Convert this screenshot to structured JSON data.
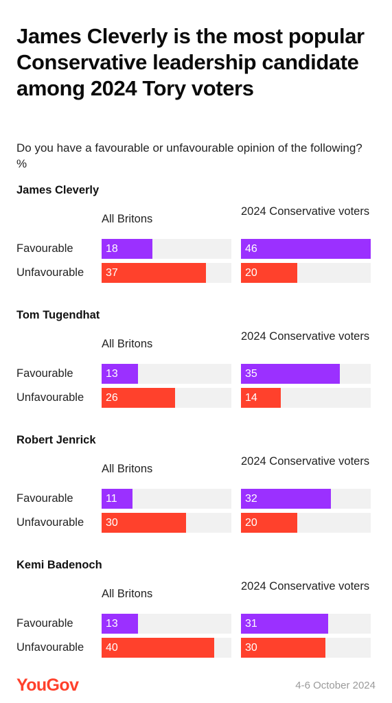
{
  "title": "James Cleverly is the most popular Conservative leadership candidate among 2024 Tory voters",
  "subtitle": "Do you have a favourable or unfavourable opinion of the following? %",
  "footer": {
    "logo": "YouGov",
    "date": "4-6 October 2024"
  },
  "colors": {
    "favourable": "#9b30ff",
    "unfavourable": "#ff412c",
    "track": "#f1f1f1",
    "brand": "#ff412c"
  },
  "chart_data": {
    "type": "bar",
    "orientation": "horizontal",
    "xlim": [
      0,
      46
    ],
    "panels": [
      "All Britons",
      "2024 Conservative voters"
    ],
    "categories": [
      "Favourable",
      "Unfavourable"
    ],
    "groups": [
      {
        "name": "James Cleverly",
        "series": [
          {
            "name": "All Britons",
            "values": [
              18,
              37
            ]
          },
          {
            "name": "2024 Conservative voters",
            "values": [
              46,
              20
            ]
          }
        ]
      },
      {
        "name": "Tom Tugendhat",
        "series": [
          {
            "name": "All Britons",
            "values": [
              13,
              26
            ]
          },
          {
            "name": "2024 Conservative voters",
            "values": [
              35,
              14
            ]
          }
        ]
      },
      {
        "name": "Robert Jenrick",
        "series": [
          {
            "name": "All Britons",
            "values": [
              11,
              30
            ]
          },
          {
            "name": "2024 Conservative voters",
            "values": [
              32,
              20
            ]
          }
        ]
      },
      {
        "name": "Kemi Badenoch",
        "series": [
          {
            "name": "All Britons",
            "values": [
              13,
              40
            ]
          },
          {
            "name": "2024 Conservative voters",
            "values": [
              31,
              30
            ]
          }
        ]
      }
    ]
  }
}
